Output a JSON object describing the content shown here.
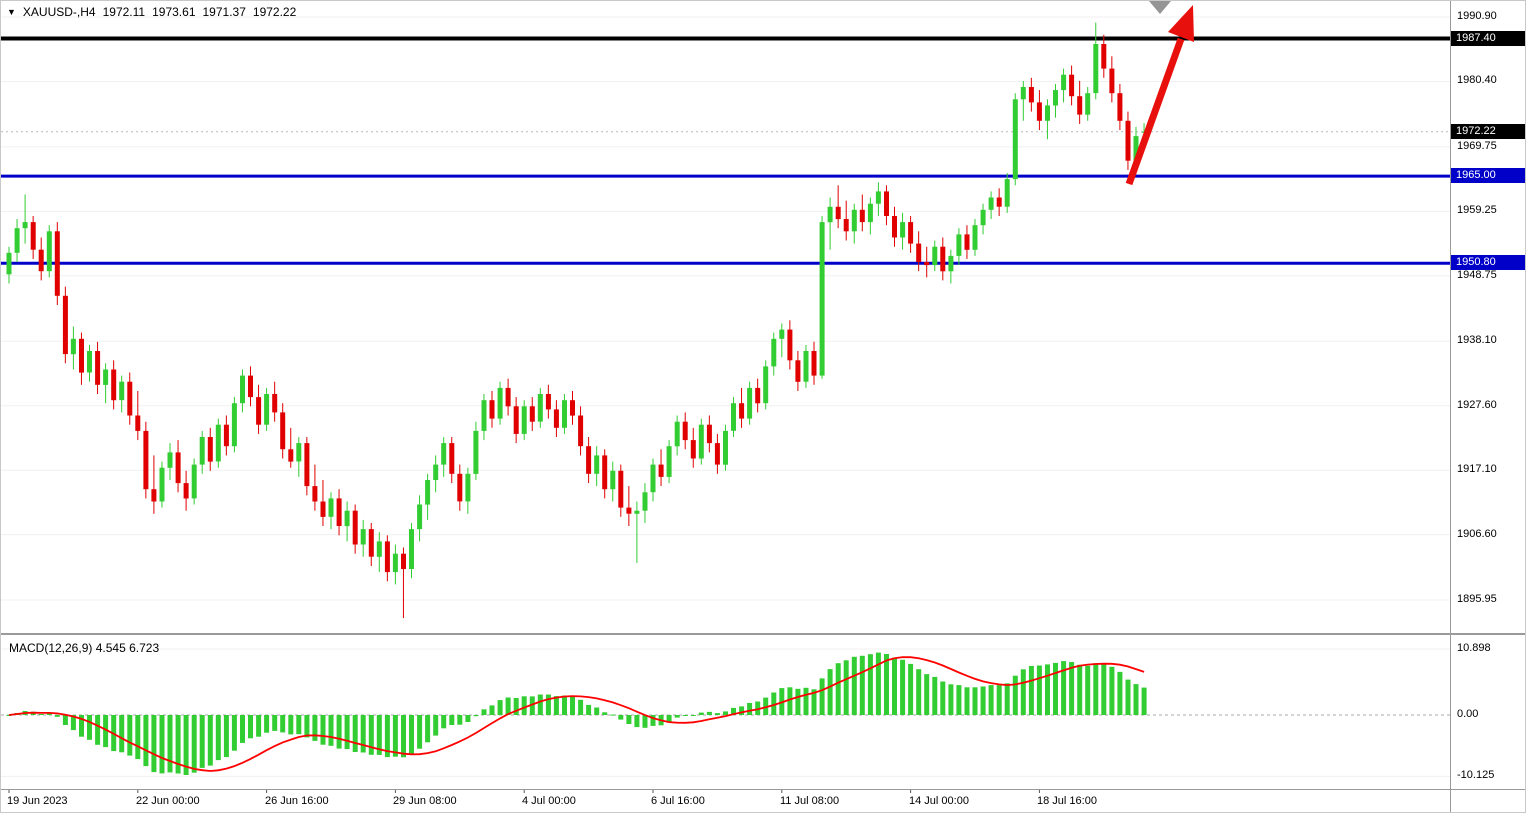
{
  "window": {
    "symbol_tf": "XAUUSD-,H4",
    "open": "1972.11",
    "high": "1973.61",
    "low": "1971.37",
    "close": "1972.22"
  },
  "colors": {
    "background": "#FFFFFF",
    "bull": "#32CD32",
    "bear": "#E00000",
    "grid": "#F0F0F0",
    "axis_text": "#000000",
    "level_black": "#000000",
    "level_blue": "#0000C8",
    "current_price_badge": "#000000",
    "macd_histogram": "#32CD32",
    "macd_signal": "#FF0000",
    "arrow": "#E8100C"
  },
  "price_axis": {
    "labels": [
      "1990.90",
      "1980.40",
      "1969.75",
      "1959.25",
      "1948.75",
      "1938.10",
      "1927.60",
      "1917.10",
      "1906.60",
      "1895.95"
    ],
    "values": [
      1990.9,
      1980.4,
      1969.75,
      1959.25,
      1948.75,
      1938.1,
      1927.6,
      1917.1,
      1906.6,
      1895.95
    ]
  },
  "levels": [
    {
      "label": "1987.40",
      "price": 1987.4,
      "color": "#000000",
      "thickness": 4
    },
    {
      "label": "1965.00",
      "price": 1965.0,
      "color": "#0000C8",
      "thickness": 3
    },
    {
      "label": "1950.80",
      "price": 1950.8,
      "color": "#0000C8",
      "thickness": 3
    }
  ],
  "current_price": {
    "label": "1972.22",
    "price": 1972.22
  },
  "macd_panel": {
    "label": "MACD(12,26,9)",
    "main_value": "4.545",
    "signal_value": "6.723",
    "axis_labels": [
      "10.898",
      "0.00",
      "-10.125"
    ],
    "axis_values": [
      10.898,
      0,
      -10.125
    ]
  },
  "time_axis": {
    "ticks": [
      {
        "index": 0,
        "label": "19 Jun 2023"
      },
      {
        "index": 16,
        "label": "22 Jun 00:00"
      },
      {
        "index": 32,
        "label": "26 Jun 16:00"
      },
      {
        "index": 48,
        "label": "29 Jun 08:00"
      },
      {
        "index": 64,
        "label": "4 Jul 00:00"
      },
      {
        "index": 80,
        "label": "6 Jul 16:00"
      },
      {
        "index": 96,
        "label": "11 Jul 08:00"
      },
      {
        "index": 112,
        "label": "14 Jul 00:00"
      },
      {
        "index": 128,
        "label": "18 Jul 16:00"
      }
    ]
  },
  "chart_data": {
    "type": "candlestick",
    "symbol": "XAUUSD-",
    "timeframe": "H4",
    "title": "XAUUSD- H4 with MACD(12,26,9), horizontal levels 1987.40 / 1965.00 / 1950.80 and red up-arrow annotation",
    "ylim_main": [
      1890.9,
      1993.5
    ],
    "last_ohlc": {
      "open": 1972.11,
      "high": 1973.61,
      "low": 1971.37,
      "close": 1972.22
    },
    "candles": [
      [
        1949.0,
        1953.5,
        1947.5,
        1952.5
      ],
      [
        1952.5,
        1958.0,
        1951.0,
        1956.5
      ],
      [
        1956.5,
        1962.0,
        1954.0,
        1957.5
      ],
      [
        1957.5,
        1958.5,
        1951.5,
        1953.0
      ],
      [
        1953.0,
        1955.0,
        1948.0,
        1949.5
      ],
      [
        1949.5,
        1957.0,
        1948.5,
        1956.0
      ],
      [
        1956.0,
        1957.5,
        1944.0,
        1945.5
      ],
      [
        1945.5,
        1947.0,
        1934.5,
        1936.0
      ],
      [
        1936.0,
        1940.5,
        1933.5,
        1938.5
      ],
      [
        1938.5,
        1939.5,
        1931.0,
        1933.0
      ],
      [
        1933.0,
        1937.5,
        1931.5,
        1936.5
      ],
      [
        1936.5,
        1938.0,
        1929.5,
        1931.0
      ],
      [
        1931.0,
        1934.5,
        1928.0,
        1933.5
      ],
      [
        1933.5,
        1935.0,
        1927.0,
        1928.5
      ],
      [
        1928.5,
        1932.5,
        1926.5,
        1931.5
      ],
      [
        1931.5,
        1933.0,
        1924.5,
        1926.0
      ],
      [
        1926.0,
        1930.0,
        1922.0,
        1923.5
      ],
      [
        1923.5,
        1925.0,
        1912.5,
        1914.0
      ],
      [
        1914.0,
        1919.5,
        1910.0,
        1912.0
      ],
      [
        1912.0,
        1918.5,
        1911.0,
        1917.5
      ],
      [
        1917.5,
        1921.5,
        1915.5,
        1920.0
      ],
      [
        1920.0,
        1922.0,
        1913.5,
        1915.0
      ],
      [
        1915.0,
        1917.0,
        1910.5,
        1912.5
      ],
      [
        1912.5,
        1919.0,
        1911.5,
        1918.0
      ],
      [
        1918.0,
        1923.5,
        1916.5,
        1922.5
      ],
      [
        1922.5,
        1924.0,
        1917.0,
        1918.5
      ],
      [
        1918.5,
        1925.5,
        1917.5,
        1924.5
      ],
      [
        1924.5,
        1926.0,
        1919.5,
        1921.0
      ],
      [
        1921.0,
        1929.0,
        1920.0,
        1928.0
      ],
      [
        1928.0,
        1933.5,
        1926.5,
        1932.5
      ],
      [
        1932.5,
        1934.0,
        1927.5,
        1929.0
      ],
      [
        1929.0,
        1931.0,
        1923.0,
        1924.5
      ],
      [
        1924.5,
        1930.5,
        1923.5,
        1929.5
      ],
      [
        1929.5,
        1931.5,
        1925.0,
        1926.5
      ],
      [
        1926.5,
        1928.0,
        1919.0,
        1920.5
      ],
      [
        1920.5,
        1924.0,
        1917.5,
        1918.5
      ],
      [
        1918.5,
        1922.5,
        1916.0,
        1921.5
      ],
      [
        1921.5,
        1922.5,
        1913.0,
        1914.5
      ],
      [
        1914.5,
        1918.0,
        1910.5,
        1912.0
      ],
      [
        1912.0,
        1915.5,
        1908.0,
        1909.5
      ],
      [
        1909.5,
        1913.5,
        1907.5,
        1912.5
      ],
      [
        1912.5,
        1914.0,
        1906.5,
        1908.0
      ],
      [
        1908.0,
        1912.0,
        1905.5,
        1910.5
      ],
      [
        1910.5,
        1911.5,
        1903.5,
        1905.0
      ],
      [
        1905.0,
        1909.0,
        1903.0,
        1907.5
      ],
      [
        1907.5,
        1908.5,
        1901.5,
        1903.0
      ],
      [
        1903.0,
        1907.0,
        1900.5,
        1905.5
      ],
      [
        1905.5,
        1906.5,
        1899.0,
        1900.5
      ],
      [
        1900.5,
        1905.0,
        1898.5,
        1903.5
      ],
      [
        1903.5,
        1904.5,
        1893.0,
        1901.0
      ],
      [
        1901.0,
        1908.5,
        1899.5,
        1907.5
      ],
      [
        1907.5,
        1913.0,
        1905.5,
        1911.5
      ],
      [
        1911.5,
        1916.5,
        1909.0,
        1915.5
      ],
      [
        1915.5,
        1919.5,
        1913.5,
        1918.0
      ],
      [
        1918.0,
        1922.5,
        1916.0,
        1921.5
      ],
      [
        1921.5,
        1922.5,
        1915.0,
        1916.5
      ],
      [
        1916.5,
        1918.0,
        1910.5,
        1912.0
      ],
      [
        1912.0,
        1917.5,
        1910.0,
        1916.5
      ],
      [
        1916.5,
        1925.0,
        1915.5,
        1923.5
      ],
      [
        1923.5,
        1929.5,
        1922.0,
        1928.5
      ],
      [
        1928.5,
        1930.0,
        1924.0,
        1925.5
      ],
      [
        1925.5,
        1931.5,
        1924.5,
        1930.5
      ],
      [
        1930.5,
        1932.0,
        1926.0,
        1927.5
      ],
      [
        1927.5,
        1929.0,
        1921.5,
        1923.0
      ],
      [
        1923.0,
        1928.5,
        1922.0,
        1927.5
      ],
      [
        1927.5,
        1929.0,
        1923.5,
        1925.0
      ],
      [
        1925.0,
        1930.5,
        1924.0,
        1929.5
      ],
      [
        1929.5,
        1931.0,
        1925.5,
        1927.0
      ],
      [
        1927.0,
        1928.5,
        1922.5,
        1924.0
      ],
      [
        1924.0,
        1929.5,
        1923.0,
        1928.5
      ],
      [
        1928.5,
        1930.0,
        1924.5,
        1926.0
      ],
      [
        1926.0,
        1927.5,
        1919.5,
        1921.0
      ],
      [
        1921.0,
        1922.5,
        1915.0,
        1916.5
      ],
      [
        1916.5,
        1921.0,
        1914.5,
        1919.5
      ],
      [
        1919.5,
        1920.5,
        1912.5,
        1914.0
      ],
      [
        1914.0,
        1918.5,
        1912.0,
        1917.0
      ],
      [
        1917.0,
        1918.0,
        1909.5,
        1911.0
      ],
      [
        1911.0,
        1914.5,
        1908.0,
        1910.0
      ],
      [
        1910.0,
        1912.0,
        1902.0,
        1910.5
      ],
      [
        1910.5,
        1915.0,
        1908.5,
        1913.5
      ],
      [
        1913.5,
        1919.0,
        1912.0,
        1918.0
      ],
      [
        1918.0,
        1920.5,
        1914.5,
        1916.0
      ],
      [
        1916.0,
        1922.0,
        1915.0,
        1921.0
      ],
      [
        1921.0,
        1926.0,
        1919.5,
        1925.0
      ],
      [
        1925.0,
        1926.5,
        1920.5,
        1922.0
      ],
      [
        1922.0,
        1924.0,
        1917.5,
        1919.0
      ],
      [
        1919.0,
        1925.5,
        1918.0,
        1924.5
      ],
      [
        1924.5,
        1926.0,
        1920.0,
        1921.5
      ],
      [
        1921.5,
        1923.0,
        1916.5,
        1918.0
      ],
      [
        1918.0,
        1924.5,
        1917.0,
        1923.5
      ],
      [
        1923.5,
        1929.0,
        1922.5,
        1928.0
      ],
      [
        1928.0,
        1930.5,
        1924.0,
        1925.5
      ],
      [
        1925.5,
        1931.5,
        1924.5,
        1930.5
      ],
      [
        1930.5,
        1932.0,
        1926.5,
        1928.0
      ],
      [
        1928.0,
        1935.0,
        1927.0,
        1934.0
      ],
      [
        1934.0,
        1939.5,
        1932.5,
        1938.5
      ],
      [
        1938.5,
        1941.0,
        1935.5,
        1940.0
      ],
      [
        1940.0,
        1941.5,
        1933.5,
        1935.0
      ],
      [
        1935.0,
        1936.5,
        1930.0,
        1931.5
      ],
      [
        1931.5,
        1937.5,
        1930.5,
        1936.5
      ],
      [
        1936.5,
        1938.0,
        1931.0,
        1932.5
      ],
      [
        1932.5,
        1958.5,
        1932.0,
        1957.5
      ],
      [
        1957.5,
        1961.5,
        1953.0,
        1960.0
      ],
      [
        1960.0,
        1963.5,
        1956.5,
        1958.0
      ],
      [
        1958.0,
        1961.0,
        1954.5,
        1956.0
      ],
      [
        1956.0,
        1960.5,
        1954.0,
        1959.5
      ],
      [
        1959.5,
        1962.0,
        1956.0,
        1957.5
      ],
      [
        1957.5,
        1961.5,
        1955.5,
        1960.5
      ],
      [
        1960.5,
        1964.0,
        1958.5,
        1962.5
      ],
      [
        1962.5,
        1963.5,
        1957.0,
        1958.5
      ],
      [
        1958.5,
        1960.0,
        1953.5,
        1955.0
      ],
      [
        1955.0,
        1959.0,
        1953.0,
        1957.5
      ],
      [
        1957.5,
        1958.5,
        1952.5,
        1954.0
      ],
      [
        1954.0,
        1956.0,
        1949.5,
        1951.0
      ],
      [
        1951.0,
        1953.5,
        1948.5,
        1950.5
      ],
      [
        1950.5,
        1954.5,
        1949.5,
        1953.5
      ],
      [
        1953.5,
        1955.0,
        1948.0,
        1949.5
      ],
      [
        1949.5,
        1953.0,
        1947.5,
        1952.0
      ],
      [
        1952.0,
        1956.5,
        1950.5,
        1955.5
      ],
      [
        1955.5,
        1957.0,
        1951.5,
        1953.0
      ],
      [
        1953.0,
        1958.0,
        1952.0,
        1957.0
      ],
      [
        1957.0,
        1960.5,
        1955.5,
        1959.5
      ],
      [
        1959.5,
        1962.5,
        1958.0,
        1961.5
      ],
      [
        1961.5,
        1963.0,
        1958.5,
        1960.0
      ],
      [
        1960.0,
        1965.5,
        1959.0,
        1964.5
      ],
      [
        1964.5,
        1978.5,
        1963.5,
        1977.5
      ],
      [
        1977.5,
        1980.5,
        1974.0,
        1979.5
      ],
      [
        1979.5,
        1981.0,
        1975.5,
        1977.0
      ],
      [
        1977.0,
        1979.0,
        1972.5,
        1974.0
      ],
      [
        1974.0,
        1977.5,
        1971.0,
        1976.5
      ],
      [
        1976.5,
        1980.0,
        1974.5,
        1979.0
      ],
      [
        1979.0,
        1982.5,
        1977.0,
        1981.5
      ],
      [
        1981.5,
        1983.0,
        1976.5,
        1978.0
      ],
      [
        1978.0,
        1980.5,
        1973.5,
        1975.0
      ],
      [
        1975.0,
        1979.5,
        1974.0,
        1978.5
      ],
      [
        1978.5,
        1990.0,
        1977.5,
        1986.5
      ],
      [
        1986.5,
        1988.0,
        1981.0,
        1982.5
      ],
      [
        1982.5,
        1984.5,
        1977.0,
        1978.5
      ],
      [
        1978.5,
        1980.0,
        1972.5,
        1974.0
      ],
      [
        1974.0,
        1975.5,
        1966.0,
        1967.5
      ],
      [
        1967.5,
        1973.0,
        1965.5,
        1971.5
      ],
      [
        1972.11,
        1973.61,
        1971.37,
        1972.22
      ]
    ],
    "indicator": {
      "name": "MACD",
      "params": [
        12,
        26,
        9
      ],
      "displayed_main_value": 4.545,
      "displayed_signal_value": 6.723,
      "ylim": [
        -10.125,
        10.898
      ],
      "derivation": "histogram = EMA12-EMA26 of closes; signal = SMA9 of histogram"
    },
    "annotations": [
      {
        "type": "arrow-up",
        "color": "#E8100C",
        "description": "thick red arrow pointing up-right toward the 1987.40 level"
      },
      {
        "type": "triangle-marker",
        "color": "#808080",
        "description": "small gray triangle at top near arrowhead"
      }
    ]
  }
}
